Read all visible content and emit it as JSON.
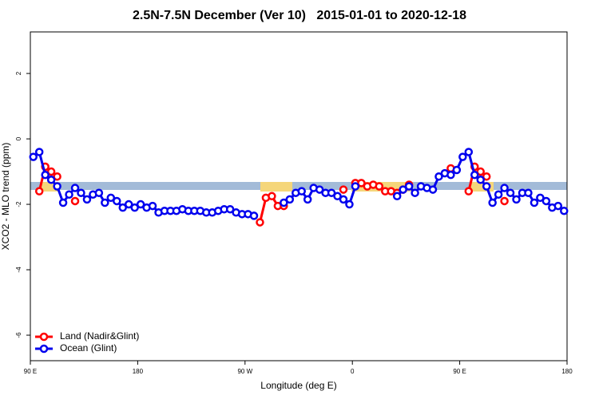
{
  "chart_data": {
    "type": "line",
    "title": "2.5N-7.5N December (Ver 10)   2015-01-01 to 2020-12-18",
    "x_label": "Longitude (deg E)",
    "y_label": "XCO2 - MLO trend (ppm)",
    "xlim": [
      90,
      540
    ],
    "ylim": [
      -6.78,
      3.27
    ],
    "xticks": [
      {
        "value": 90,
        "label": "90 E"
      },
      180,
      {
        "value": 270,
        "label": "90 W"
      },
      {
        "value": 360,
        "label": "0"
      },
      {
        "value": 450,
        "label": "90 E"
      },
      {
        "value": 540,
        "label": "180"
      }
    ],
    "yticks": [
      -6,
      -4,
      -2,
      0,
      2
    ],
    "legend": "bottom-left",
    "x": [
      92.5,
      97.5,
      102.5,
      107.5,
      112.5,
      117.5,
      122.5,
      127.5,
      132.5,
      137.5,
      142.5,
      147.5,
      152.5,
      157.5,
      162.5,
      167.5,
      172.5,
      177.5,
      182.5,
      187.5,
      192.5,
      197.5,
      202.5,
      207.5,
      212.5,
      217.5,
      222.5,
      227.5,
      232.5,
      237.5,
      242.5,
      247.5,
      252.5,
      257.5,
      262.5,
      267.5,
      272.5,
      277.5,
      282.5,
      287.5,
      292.5,
      297.5,
      302.5,
      307.5,
      312.5,
      317.5,
      322.5,
      327.5,
      332.5,
      337.5,
      342.5,
      347.5,
      352.5,
      357.5,
      362.5,
      367.5,
      372.5,
      377.5,
      382.5,
      387.5,
      392.5,
      397.5,
      402.5,
      407.5,
      412.5,
      417.5,
      422.5,
      427.5,
      432.5,
      437.5,
      442.5,
      447.5,
      452.5,
      457.5,
      462.5,
      467.5,
      472.5,
      477.5,
      482.5,
      487.5,
      492.5,
      497.5,
      502.5,
      507.5,
      512.5,
      517.5,
      522.5,
      527.5,
      532.5,
      537.5
    ],
    "series": [
      {
        "name": "Land (Nadir&Glint)",
        "color": "#ff0000",
        "values": [
          null,
          -1.6,
          -0.85,
          -1.0,
          -1.15,
          null,
          null,
          -1.9,
          null,
          null,
          null,
          null,
          null,
          null,
          null,
          null,
          null,
          null,
          null,
          null,
          null,
          null,
          null,
          null,
          null,
          null,
          null,
          null,
          null,
          null,
          null,
          null,
          null,
          null,
          null,
          null,
          null,
          null,
          -2.55,
          -1.8,
          -1.75,
          -2.05,
          -2.05,
          null,
          null,
          null,
          null,
          null,
          null,
          null,
          null,
          null,
          -1.55,
          null,
          -1.35,
          -1.35,
          -1.45,
          -1.4,
          -1.45,
          -1.6,
          -1.6,
          -1.65,
          -1.55,
          -1.4,
          null,
          null,
          null,
          null,
          null,
          null,
          -0.9,
          null,
          null,
          -1.6,
          -0.85,
          -1.0,
          -1.15,
          null,
          null,
          -1.9,
          null,
          null,
          null,
          null,
          null,
          null,
          null,
          null,
          null,
          null
        ]
      },
      {
        "name": "Ocean (Glint)",
        "color": "#0000ee",
        "values": [
          -0.55,
          -0.4,
          -1.1,
          -1.25,
          -1.45,
          -1.95,
          -1.7,
          -1.5,
          -1.65,
          -1.85,
          -1.7,
          -1.65,
          -1.95,
          -1.8,
          -1.9,
          -2.1,
          -2.0,
          -2.1,
          -2.0,
          -2.1,
          -2.05,
          -2.25,
          -2.2,
          -2.2,
          -2.2,
          -2.15,
          -2.2,
          -2.2,
          -2.2,
          -2.25,
          -2.25,
          -2.2,
          -2.15,
          -2.15,
          -2.25,
          -2.3,
          -2.3,
          -2.35,
          null,
          null,
          null,
          null,
          -1.95,
          -1.85,
          -1.65,
          -1.6,
          -1.85,
          -1.5,
          -1.55,
          -1.65,
          -1.65,
          -1.75,
          -1.85,
          -2.0,
          -1.45,
          null,
          null,
          null,
          null,
          null,
          null,
          -1.75,
          -1.55,
          -1.45,
          -1.65,
          -1.45,
          -1.5,
          -1.55,
          -1.15,
          -1.05,
          -1.1,
          -0.95,
          -0.55,
          -0.4,
          -1.1,
          -1.25,
          -1.45,
          -1.95,
          -1.7,
          -1.5,
          -1.65,
          -1.85,
          -1.65,
          -1.65,
          -1.95,
          -1.8,
          -1.9,
          -2.1,
          -2.05,
          -2.2
        ]
      }
    ]
  }
}
